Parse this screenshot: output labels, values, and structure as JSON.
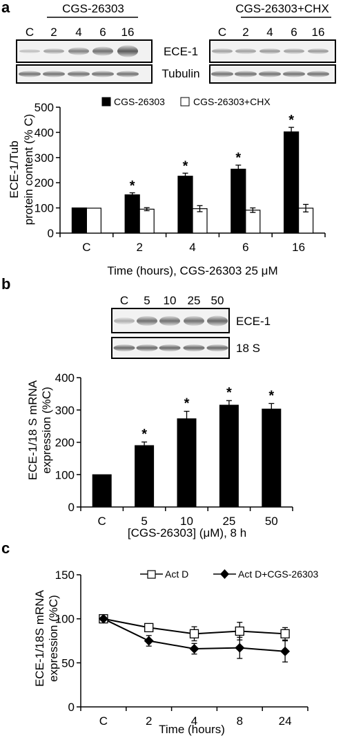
{
  "panels": {
    "a": {
      "letter": "a",
      "blot": {
        "group1_label": "CGS-26303",
        "group2_label": "CGS-26303+CHX",
        "lanes1": [
          "C",
          "2",
          "4",
          "6",
          "16"
        ],
        "lanes2": [
          "C",
          "2",
          "4",
          "6",
          "16"
        ],
        "bands": [
          "ECE-1",
          "Tubulin"
        ]
      }
    },
    "b": {
      "letter": "b",
      "blot": {
        "lanes": [
          "C",
          "5",
          "10",
          "25",
          "50"
        ],
        "bands": [
          "ECE-1",
          "18 S"
        ]
      }
    },
    "c": {
      "letter": "c"
    }
  },
  "chart_data": [
    {
      "type": "bar",
      "categories": [
        "C",
        "2",
        "4",
        "6",
        "16"
      ],
      "series": [
        {
          "name": "CGS-26303",
          "values": [
            100,
            152,
            226,
            254,
            402
          ],
          "errors": [
            0,
            8,
            12,
            16,
            18
          ],
          "color": "#000000",
          "significant": [
            false,
            true,
            true,
            true,
            true
          ]
        },
        {
          "name": "CGS-26303+CHX",
          "values": [
            99,
            95,
            97,
            91,
            99
          ],
          "errors": [
            0,
            6,
            12,
            9,
            15
          ],
          "color": "#ffffff",
          "significant": [
            false,
            false,
            false,
            false,
            false
          ]
        }
      ],
      "ylabel_line1": "ECE-1/Tub",
      "ylabel_line2": "protein content (% C)",
      "xlabel": "Time (hours), CGS-26303 25 μM",
      "ylim": [
        0,
        500
      ],
      "yticks": [
        0,
        100,
        200,
        300,
        400,
        500
      ],
      "legend": "top"
    },
    {
      "type": "bar",
      "categories": [
        "C",
        "5",
        "10",
        "25",
        "50"
      ],
      "series": [
        {
          "values": [
            100,
            190,
            273,
            315,
            303
          ],
          "errors": [
            0,
            11,
            23,
            14,
            17
          ],
          "color": "#000000",
          "significant": [
            false,
            true,
            true,
            true,
            true
          ]
        }
      ],
      "ylabel_line1": "ECE-1/18 S mRNA",
      "ylabel_line2": "expression (%C)",
      "xlabel": "[CGS-26303] (μM), 8 h",
      "ylim": [
        0,
        400
      ],
      "yticks": [
        0,
        100,
        200,
        300,
        400
      ]
    },
    {
      "type": "line",
      "categories": [
        "C",
        "2",
        "4",
        "8",
        "24"
      ],
      "series": [
        {
          "name": "Act D",
          "values": [
            100,
            90,
            83,
            86,
            83
          ],
          "errors": [
            4,
            4,
            8,
            10,
            7
          ],
          "marker": "open-square"
        },
        {
          "name": "Act D+CGS-26303",
          "values": [
            100,
            75,
            66,
            67,
            63
          ],
          "errors": [
            4,
            6,
            6,
            12,
            12
          ],
          "marker": "filled-diamond"
        }
      ],
      "ylabel_line1": "ECE-1/18S mRNA",
      "ylabel_line2": "expression (%C)",
      "xlabel": "Time (hours)",
      "ylim": [
        0,
        150
      ],
      "yticks": [
        0,
        50,
        100,
        150
      ],
      "legend": "top"
    }
  ]
}
